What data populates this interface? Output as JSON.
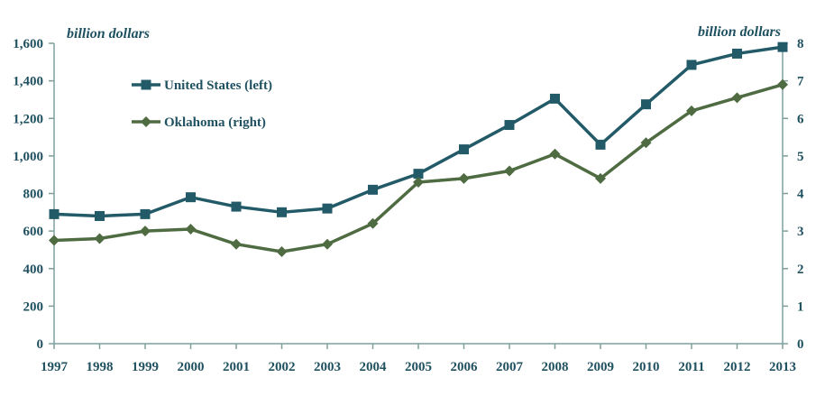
{
  "chart_data": {
    "type": "line",
    "categories": [
      "1997",
      "1998",
      "1999",
      "2000",
      "2001",
      "2002",
      "2003",
      "2004",
      "2005",
      "2006",
      "2007",
      "2008",
      "2009",
      "2010",
      "2011",
      "2012",
      "2013"
    ],
    "series": [
      {
        "name": "United States (left)",
        "axis": "left",
        "color": "#235a68",
        "marker": "square",
        "values": [
          690,
          680,
          690,
          780,
          730,
          700,
          720,
          820,
          905,
          1035,
          1165,
          1305,
          1060,
          1275,
          1485,
          1545,
          1580
        ]
      },
      {
        "name": "Oklahoma (right)",
        "axis": "right",
        "color": "#4e6b41",
        "marker": "diamond",
        "values": [
          2.75,
          2.8,
          3.0,
          3.05,
          2.65,
          2.45,
          2.65,
          3.2,
          4.3,
          4.4,
          4.6,
          5.05,
          4.4,
          5.35,
          6.2,
          6.55,
          6.9
        ]
      }
    ],
    "y_left": {
      "label": "billion dollars",
      "ylim": [
        0,
        1600
      ],
      "ticks": [
        "0",
        "200",
        "400",
        "600",
        "800",
        "1,000",
        "1,200",
        "1,400",
        "1,600"
      ],
      "tick_values": [
        0,
        200,
        400,
        600,
        800,
        1000,
        1200,
        1400,
        1600
      ]
    },
    "y_right": {
      "label": "billion dollars",
      "ylim": [
        0,
        8
      ],
      "ticks": [
        "0",
        "1",
        "2",
        "3",
        "4",
        "5",
        "6",
        "7",
        "8"
      ],
      "tick_values": [
        0,
        1,
        2,
        3,
        4,
        5,
        6,
        7,
        8
      ]
    },
    "grid": false,
    "legend": "top-left",
    "axis_color": "#7f9f9f",
    "text_color": "#1f5160"
  }
}
